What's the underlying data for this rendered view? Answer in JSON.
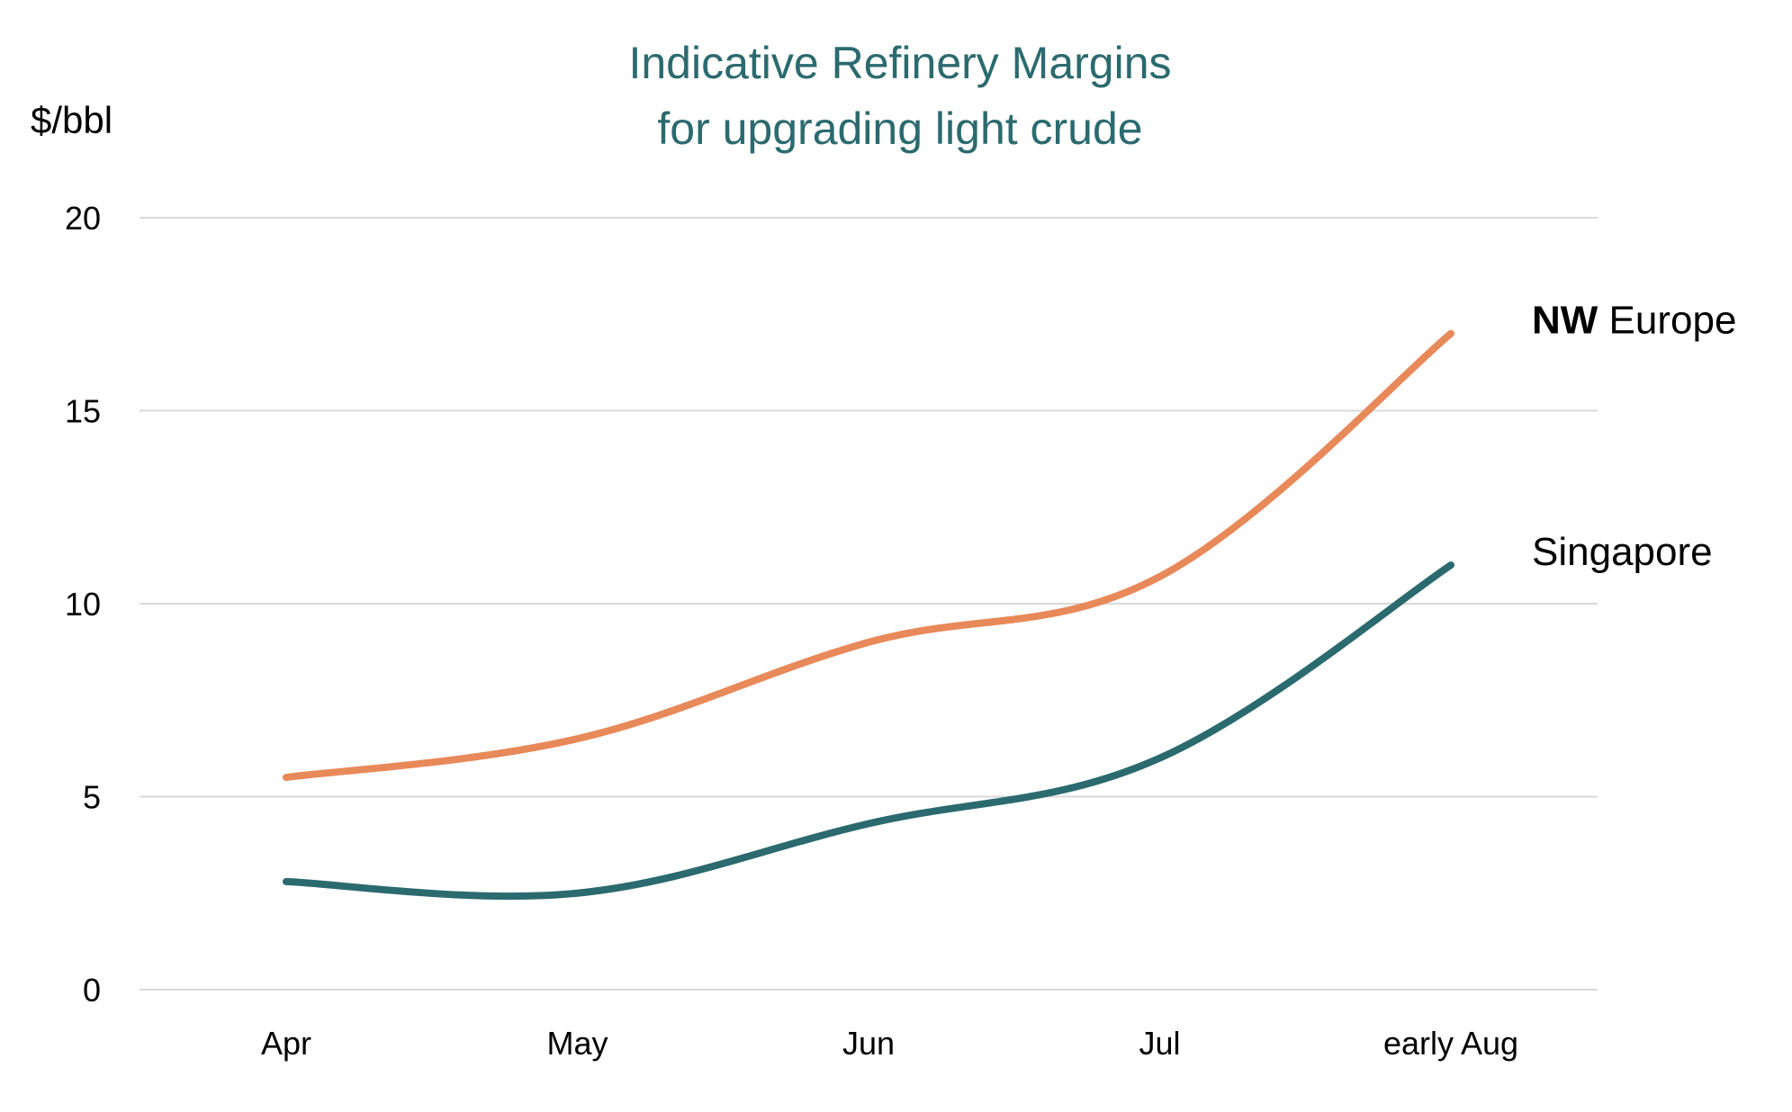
{
  "chart_data": {
    "type": "line",
    "title_lines": [
      "Indicative Refinery Margins",
      "for upgrading light crude"
    ],
    "ylabel": "$/bbl",
    "xlabel": "",
    "categories": [
      "Apr",
      "May",
      "Jun",
      "Jul",
      "early Aug"
    ],
    "ylim": [
      0,
      20
    ],
    "yticks": [
      "0",
      "5",
      "10",
      "15",
      "20"
    ],
    "grid": true,
    "series": [
      {
        "name": "NW Europe",
        "values": [
          5.5,
          6.5,
          9.0,
          10.7,
          17.0
        ],
        "color": "#e8895a"
      },
      {
        "name": "Singapore",
        "values": [
          2.8,
          2.5,
          4.3,
          6.0,
          11.0
        ],
        "color": "#2b6a6e"
      }
    ],
    "title_color": "#2b6a6e"
  }
}
